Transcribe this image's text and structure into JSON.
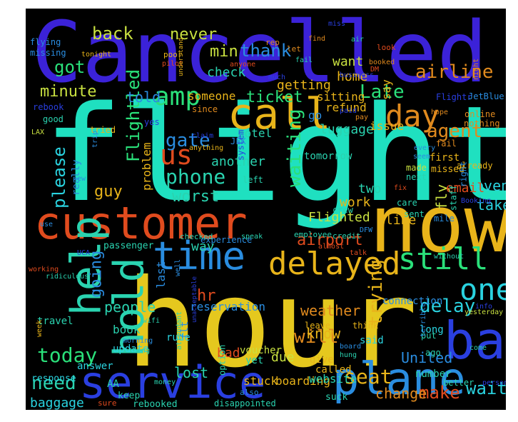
{
  "words": [
    {
      "id": "flight",
      "text": "flight",
      "color": "#1fe0c0"
    },
    {
      "id": "hour",
      "text": "hour",
      "color": "#e5c81e"
    },
    {
      "id": "Cancelled",
      "text": "Cancelled",
      "color": "#3b22d8"
    },
    {
      "id": "now",
      "text": "now",
      "color": "#e8b41a"
    },
    {
      "id": "customer",
      "text": "customer",
      "color": "#e04b1e"
    },
    {
      "id": "service",
      "text": "service",
      "color": "#2a3fe0"
    },
    {
      "id": "plane",
      "text": "plane",
      "color": "#2a8de0"
    },
    {
      "id": "time",
      "text": "time",
      "color": "#2a8de0"
    },
    {
      "id": "bag",
      "text": "bag",
      "color": "#2a3fe0"
    },
    {
      "id": "help",
      "text": "help",
      "color": "#2ad3b0"
    },
    {
      "id": "hold",
      "text": "hold",
      "color": "#2ad3b0"
    },
    {
      "id": "call",
      "text": "call",
      "color": "#e8b41a"
    },
    {
      "id": "delayed",
      "text": "delayed",
      "color": "#e8b41a"
    },
    {
      "id": "still",
      "text": "still",
      "color": "#2ae07a"
    },
    {
      "id": "one",
      "text": "one",
      "color": "#2ad3e0"
    },
    {
      "id": "amp",
      "text": "amp",
      "color": "#2ae07a"
    },
    {
      "id": "day",
      "text": "day",
      "color": "#e08a1e"
    },
    {
      "id": "us",
      "text": "us",
      "color": "#e04b1e"
    },
    {
      "id": "phone",
      "text": "phone",
      "color": "#2ad3b0"
    },
    {
      "id": "gate",
      "text": "gate",
      "color": "#2a8de0"
    },
    {
      "id": "delay",
      "text": "delay",
      "color": "#2ad3e0"
    },
    {
      "id": "today",
      "text": "today",
      "color": "#2ae07a"
    },
    {
      "id": "need",
      "text": "need",
      "color": "#2ad3b0"
    },
    {
      "id": "seat",
      "text": "seat",
      "color": "#e8b41a"
    },
    {
      "id": "will",
      "text": "will",
      "color": "#e08a1e"
    },
    {
      "id": "wait",
      "text": "wait",
      "color": "#2ad3e0"
    },
    {
      "id": "make",
      "text": "make",
      "color": "#e04b1e"
    },
    {
      "id": "change",
      "text": "change",
      "color": "#e08a1e"
    },
    {
      "id": "Late",
      "text": "Late",
      "color": "#2ae07a"
    },
    {
      "id": "agent",
      "text": "agent",
      "color": "#e08a1e"
    },
    {
      "id": "airline",
      "text": "airline",
      "color": "#e08a1e"
    },
    {
      "id": "back",
      "text": "back",
      "color": "#c8e040"
    },
    {
      "id": "never",
      "text": "never",
      "color": "#c8e040"
    },
    {
      "id": "min",
      "text": "min",
      "color": "#c8e040"
    },
    {
      "id": "thank",
      "text": "thank",
      "color": "#2a8de0"
    },
    {
      "id": "got",
      "text": "got",
      "color": "#2ae07a"
    },
    {
      "id": "minute",
      "text": "minute",
      "color": "#c8e040"
    },
    {
      "id": "Flightled",
      "text": "Flightled",
      "color": "#2ae07a"
    },
    {
      "id": "please",
      "text": "please",
      "color": "#2ad3e0"
    },
    {
      "id": "waiting",
      "text": "waiting",
      "color": "#2ae07a"
    },
    {
      "id": "worst",
      "text": "worst",
      "color": "#2ad3b0"
    },
    {
      "id": "guy",
      "text": "guy",
      "color": "#e8b41a"
    },
    {
      "id": "going",
      "text": "going",
      "color": "#2a8de0"
    },
    {
      "id": "trying",
      "text": "trying",
      "color": "#e8b41a"
    },
    {
      "id": "airport",
      "text": "airport",
      "color": "#e04b1e"
    },
    {
      "id": "hr",
      "text": "hr",
      "color": "#e04b1e"
    },
    {
      "id": "people",
      "text": "people",
      "color": "#2ad3b0"
    },
    {
      "id": "weather",
      "text": "weather",
      "color": "#e08a1e"
    },
    {
      "id": "know",
      "text": "know",
      "color": "#e8b41a"
    },
    {
      "id": "lost",
      "text": "lost",
      "color": "#2ad3b0"
    },
    {
      "id": "United",
      "text": "United",
      "color": "#2a8de0"
    },
    {
      "id": "fly",
      "text": "fly",
      "color": "#c8e040"
    },
    {
      "id": "take",
      "text": "take",
      "color": "#2ad3e0"
    },
    {
      "id": "even",
      "text": "even",
      "color": "#2ad3e0"
    },
    {
      "id": "email",
      "text": "email",
      "color": "#e04b1e"
    },
    {
      "id": "line",
      "text": "line",
      "color": "#e8b41a"
    },
    {
      "id": "Flighted",
      "text": "Flighted",
      "color": "#c8e040"
    },
    {
      "id": "work",
      "text": "work",
      "color": "#e8b41a"
    },
    {
      "id": "two",
      "text": "two",
      "color": "#2ad3b0"
    },
    {
      "id": "told",
      "text": "told",
      "color": "#2a8de0"
    },
    {
      "id": "ticket",
      "text": "ticket",
      "color": "#2ae07a"
    },
    {
      "id": "check",
      "text": "check",
      "color": "#2ad3b0"
    },
    {
      "id": "getting",
      "text": "getting",
      "color": "#e8b41a"
    },
    {
      "id": "luggage",
      "text": "luggage",
      "color": "#2ad3b0"
    },
    {
      "id": "issue",
      "text": "issue",
      "color": "#e8b41a"
    },
    {
      "id": "another",
      "text": "another",
      "color": "#2ad3b0"
    },
    {
      "id": "problem",
      "text": "problem",
      "color": "#e8b41a"
    },
    {
      "id": "want",
      "text": "want",
      "color": "#c8e040"
    },
    {
      "id": "home",
      "text": "home",
      "color": "#e8b41a"
    },
    {
      "id": "sitting",
      "text": "sitting",
      "color": "#e8b41a"
    },
    {
      "id": "refund",
      "text": "refund",
      "color": "#e8b41a"
    },
    {
      "id": "say",
      "text": "say",
      "color": "#e8b41a"
    },
    {
      "id": "Flightr",
      "text": "Flightr",
      "color": "#2a3fe0"
    },
    {
      "id": "baggage",
      "text": "baggage",
      "color": "#2ad3e0"
    },
    {
      "id": "due",
      "text": "due",
      "color": "#c8e040"
    },
    {
      "id": "stuck",
      "text": "stuck",
      "color": "#e8b41a"
    },
    {
      "id": "boarding",
      "text": "boarding",
      "color": "#e8b41a"
    },
    {
      "id": "website",
      "text": "website",
      "color": "#2ad3b0"
    },
    {
      "id": "really",
      "text": "really",
      "color": "#2a8de0"
    },
    {
      "id": "way",
      "text": "way",
      "color": "#2ad3b0"
    },
    {
      "id": "reservation",
      "text": "reservation",
      "color": "#2a8de0"
    },
    {
      "id": "book",
      "text": "book",
      "color": "#2ad3b0"
    },
    {
      "id": "travel",
      "text": "travel",
      "color": "#2ad3b0"
    },
    {
      "id": "last",
      "text": "last",
      "color": "#2a8de0"
    },
    {
      "id": "someone",
      "text": "someone",
      "color": "#e8b41a"
    },
    {
      "id": "hotel",
      "text": "hotel",
      "color": "#2ad3b0"
    },
    {
      "id": "tomorrow",
      "text": "tomorrow",
      "color": "#2ad3b0"
    },
    {
      "id": "go",
      "text": "go",
      "color": "#2a8de0"
    },
    {
      "id": "experience",
      "text": "experience",
      "color": "#2a8de0"
    },
    {
      "id": "passenger",
      "text": "passenger",
      "color": "#2ad3b0"
    },
    {
      "id": "connection",
      "text": "connection",
      "color": "#2a8de0"
    },
    {
      "id": "long",
      "text": "long",
      "color": "#2ad3e0"
    },
    {
      "id": "said",
      "text": "said",
      "color": "#2ad3e0"
    },
    {
      "id": "answer",
      "text": "answer",
      "color": "#2ad3e0"
    },
    {
      "id": "rude",
      "text": "rude",
      "color": "#2ad3e0"
    },
    {
      "id": "bad",
      "text": "bad",
      "color": "#e04b1e"
    },
    {
      "id": "voucher",
      "text": "voucher",
      "color": "#c8e040"
    },
    {
      "id": "give",
      "text": "give",
      "color": "#e8b41a"
    },
    {
      "id": "called",
      "text": "called",
      "color": "#e8b41a"
    },
    {
      "id": "number",
      "text": "number",
      "color": "#2ad3b0"
    },
    {
      "id": "yet",
      "text": "yet",
      "color": "#2ad3b0"
    },
    {
      "id": "update",
      "text": "update",
      "color": "#2ad3e0"
    },
    {
      "id": "flt",
      "text": "flt",
      "color": "#2a8de0"
    },
    {
      "id": "response",
      "text": "response",
      "color": "#2ad3e0"
    },
    {
      "id": "AA",
      "text": "AA",
      "color": "#2ad3b0"
    },
    {
      "id": "keep",
      "text": "keep",
      "color": "#2ad3b0"
    },
    {
      "id": "rebooked",
      "text": "rebooked",
      "color": "#2ad3b0"
    },
    {
      "id": "disappointed",
      "text": "disappointed",
      "color": "#2ad3b0"
    },
    {
      "id": "sure",
      "text": "sure",
      "color": "#e04b1e"
    },
    {
      "id": "also",
      "text": "also",
      "color": "#2a8de0"
    },
    {
      "id": "suck",
      "text": "suck",
      "color": "#2ad3b0"
    },
    {
      "id": "better",
      "text": "better",
      "color": "#2ad3b0"
    },
    {
      "id": "put",
      "text": "put",
      "color": "#2ad3b0"
    },
    {
      "id": "think",
      "text": "think",
      "color": "#e8b41a"
    },
    {
      "id": "leave",
      "text": "leave",
      "color": "#e8b41a"
    },
    {
      "id": "ago",
      "text": "ago",
      "color": "#2ad3b0"
    },
    {
      "id": "flying",
      "text": "flying",
      "color": "#2a8de0"
    },
    {
      "id": "missing",
      "text": "missing",
      "color": "#2a8de0"
    },
    {
      "id": "tonight",
      "text": "tonight",
      "color": "#e8b41a"
    },
    {
      "id": "poor",
      "text": "poor",
      "color": "#e8b41a"
    },
    {
      "id": "pilot",
      "text": "pilot",
      "color": "#e04b1e"
    },
    {
      "id": "understand",
      "text": "understand",
      "color": "#e8b41a"
    },
    {
      "id": "rep",
      "text": "rep",
      "color": "#e08a1e"
    },
    {
      "id": "anyone",
      "text": "anyone",
      "color": "#e04b1e"
    },
    {
      "id": "find",
      "text": "find",
      "color": "#e08a1e"
    },
    {
      "id": "let",
      "text": "let",
      "color": "#e08a1e"
    },
    {
      "id": "miss",
      "text": "miss",
      "color": "#2a3fe0"
    },
    {
      "id": "look",
      "text": "look",
      "color": "#e04b1e"
    },
    {
      "id": "booked",
      "text": "booked",
      "color": "#e08a1e"
    },
    {
      "id": "DM",
      "text": "DM",
      "color": "#e04b1e"
    },
    {
      "id": "night",
      "text": "night",
      "color": "#e08a1e"
    },
    {
      "id": "JetBlue",
      "text": "JetBlue",
      "color": "#2a8de0"
    },
    {
      "id": "much",
      "text": "much",
      "color": "#2a3fe0"
    },
    {
      "id": "business",
      "text": "business",
      "color": "#2a3fe0"
    },
    {
      "id": "hope",
      "text": "hope",
      "color": "#e08a1e"
    },
    {
      "id": "paid",
      "text": "paid",
      "color": "#2a3fe0"
    },
    {
      "id": "pay",
      "text": "pay",
      "color": "#e08a1e"
    },
    {
      "id": "online",
      "text": "online",
      "color": "#e08a1e"
    },
    {
      "id": "nothing",
      "text": "nothing",
      "color": "#e08a1e"
    },
    {
      "id": "fail",
      "text": "fail",
      "color": "#e08a1e"
    },
    {
      "id": "since",
      "text": "since",
      "color": "#e08a1e"
    },
    {
      "id": "yes",
      "text": "yes",
      "color": "#2a3fe0"
    },
    {
      "id": "claim",
      "text": "claim",
      "color": "#2a3fe0"
    },
    {
      "id": "anything",
      "text": "anything",
      "color": "#e8b41a"
    },
    {
      "id": "rebook",
      "text": "rebook",
      "color": "#2a3fe0"
    },
    {
      "id": "good",
      "text": "good",
      "color": "#2ad3b0"
    },
    {
      "id": "LAX",
      "text": "LAX",
      "color": "#c8e040"
    },
    {
      "id": "tried",
      "text": "tried",
      "color": "#e8b41a"
    },
    {
      "id": "trip",
      "text": "trip",
      "color": "#2a8de0"
    },
    {
      "id": "JFK",
      "text": "JFK",
      "color": "#2a8de0"
    },
    {
      "id": "new",
      "text": "new",
      "color": "#2a8de0"
    },
    {
      "id": "system",
      "text": "system",
      "color": "#2a3fe0"
    },
    {
      "id": "left",
      "text": "left",
      "color": "#2ad3b0"
    },
    {
      "id": "first",
      "text": "first",
      "color": "#e8b41a"
    },
    {
      "id": "made",
      "text": "made",
      "color": "#c8e040"
    },
    {
      "id": "next",
      "text": "next",
      "color": "#2ad3b0"
    },
    {
      "id": "every",
      "text": "every",
      "color": "#2a8de0"
    },
    {
      "id": "seem",
      "text": "seem",
      "color": "#2a8de0"
    },
    {
      "id": "missed",
      "text": "missed",
      "color": "#e8b41a"
    },
    {
      "id": "already",
      "text": "already",
      "color": "#e8b41a"
    },
    {
      "id": "fix",
      "text": "fix",
      "color": "#e04b1e"
    },
    {
      "id": "care",
      "text": "care",
      "color": "#2ad3b0"
    },
    {
      "id": "sent",
      "text": "sent",
      "color": "#2ad3b0"
    },
    {
      "id": "mile",
      "text": "mile",
      "color": "#2a8de0"
    },
    {
      "id": "right",
      "text": "right",
      "color": "#2a8de0"
    },
    {
      "id": "crew",
      "text": "crew",
      "color": "#2ad3b0"
    },
    {
      "id": "employee",
      "text": "employee",
      "color": "#2ad3b0"
    },
    {
      "id": "credit",
      "text": "credit",
      "color": "#2ad3b0"
    },
    {
      "id": "almost",
      "text": "almost",
      "color": "#e04b1e"
    },
    {
      "id": "talk",
      "text": "talk",
      "color": "#e04b1e"
    },
    {
      "id": "without",
      "text": "without",
      "color": "#2ad3b0"
    },
    {
      "id": "staff",
      "text": "staff",
      "color": "#2ad3b0"
    },
    {
      "id": "Booking",
      "text": "Booking",
      "color": "#2a3fe0"
    },
    {
      "id": "info",
      "text": "info",
      "color": "#2a3fe0"
    },
    {
      "id": "yesterday",
      "text": "yesterday",
      "color": "#c8e040"
    },
    {
      "id": "come",
      "text": "come",
      "color": "#2ad3b0"
    },
    {
      "id": "terrible",
      "text": "terrible",
      "color": "#2a8de0"
    },
    {
      "id": "person",
      "text": "person",
      "color": "#2a3fe0"
    },
    {
      "id": "DFW",
      "text": "DFW",
      "color": "#2a8de0"
    },
    {
      "id": "checked",
      "text": "checked",
      "color": "#2ad3b0"
    },
    {
      "id": "speak",
      "text": "speak",
      "color": "#2ad3b0"
    },
    {
      "id": "use",
      "text": "use",
      "color": "#2a8de0"
    },
    {
      "id": "UCA",
      "text": "UCA",
      "color": "#2a3fe0"
    },
    {
      "id": "ridiculous",
      "text": "ridiculous",
      "color": "#2ad3b0"
    },
    {
      "id": "working",
      "text": "working",
      "color": "#e04b1e"
    },
    {
      "id": "week",
      "text": "week",
      "color": "#e8b41a"
    },
    {
      "id": "well",
      "text": "well",
      "color": "#2a8de0"
    },
    {
      "id": "wifi",
      "text": "wifi",
      "color": "#2ad3b0"
    },
    {
      "id": "morning",
      "text": "morning",
      "color": "#2a8de0"
    },
    {
      "id": "thing",
      "text": "thing",
      "color": "#2ad3b0"
    },
    {
      "id": "attendant",
      "text": "attendant",
      "color": "#2ad3b0"
    },
    {
      "id": "unacceptable",
      "text": "unacceptable",
      "color": "#2a3fe0"
    },
    {
      "id": "money",
      "text": "money",
      "color": "#2ad3b0"
    },
    {
      "id": "option",
      "text": "option",
      "color": "#2ad3b0"
    },
    {
      "id": "hung",
      "text": "hung",
      "color": "#2ad3b0"
    },
    {
      "id": "board",
      "text": "board",
      "color": "#2a8de0"
    },
    {
      "id": "air",
      "text": "air",
      "color": "#2ad3b0"
    },
    {
      "id": "fail2",
      "text": "fail",
      "color": "#2ad3b0"
    }
  ]
}
